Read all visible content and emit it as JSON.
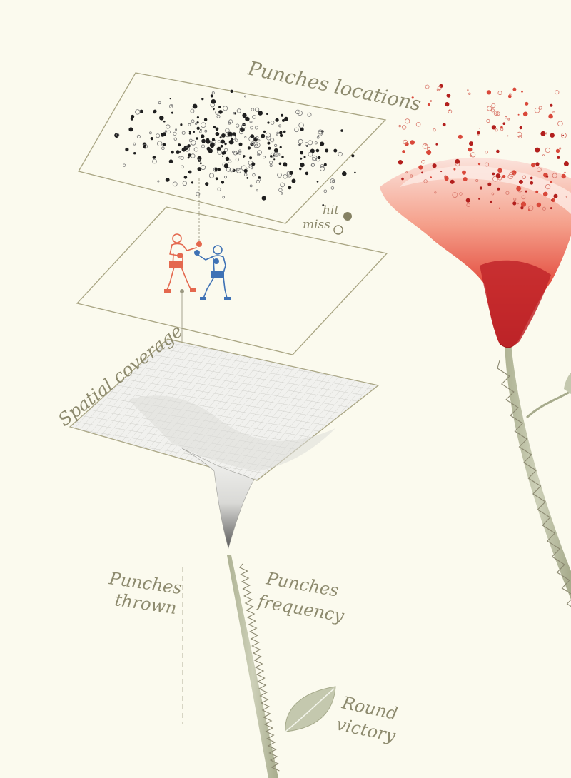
{
  "labels": {
    "punches_locations": "Punches locations",
    "hit": "hit",
    "miss": "miss",
    "spatial_coverage": "Spatial coverage",
    "punches_thrown_line1": "Punches",
    "punches_thrown_line2": "thrown",
    "punches_frequency_line1": "Punches",
    "punches_frequency_line2": "frequency",
    "round_victory_line1": "Round",
    "round_victory_line2": "victory"
  },
  "colors": {
    "background": "#fbfaee",
    "frame": "#a9a583",
    "label_text": "#8d8a6e",
    "hit_marker": "#858163",
    "stem": "#b9bca1",
    "leaf": "#c4c8ae",
    "boxer_red": "#e4684e",
    "boxer_blue": "#3f72b5",
    "flower_red": "#b21f1d",
    "flower_pink": "#f7c9bd"
  },
  "icons": {
    "hit_marker": "filled-circle-icon",
    "miss_marker": "hollow-circle-icon",
    "boxer_left": "red-boxer-icon",
    "boxer_right": "blue-boxer-icon",
    "leaf": "leaf-icon"
  }
}
